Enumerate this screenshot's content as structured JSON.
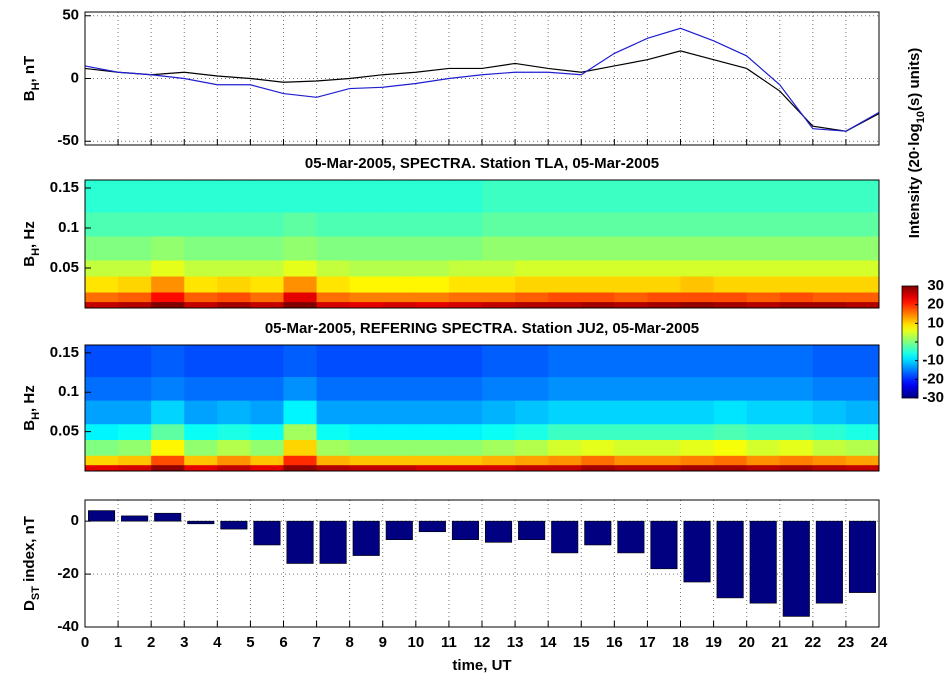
{
  "chart_data": [
    {
      "type": "line",
      "ylabel": {
        "text": "B",
        "sub": "H",
        "rest": ", nT"
      },
      "xlim": [
        0,
        24
      ],
      "ylim": [
        -53,
        53
      ],
      "yticks": [
        -50,
        0,
        50
      ],
      "grid": true,
      "x": [
        0,
        1,
        2,
        3,
        4,
        5,
        6,
        7,
        8,
        9,
        10,
        11,
        12,
        13,
        14,
        15,
        16,
        17,
        18,
        19,
        20,
        21,
        22,
        23,
        24
      ],
      "series": [
        {
          "color": "#000000",
          "values": [
            8,
            5,
            3,
            5,
            2,
            0,
            -3,
            -2,
            0,
            3,
            5,
            8,
            8,
            12,
            8,
            5,
            10,
            15,
            22,
            15,
            8,
            -10,
            -38,
            -42,
            -28
          ]
        },
        {
          "color": "#1f1fd0",
          "values": [
            10,
            5,
            3,
            0,
            -5,
            -5,
            -12,
            -15,
            -8,
            -7,
            -4,
            0,
            3,
            5,
            5,
            3,
            20,
            32,
            40,
            30,
            18,
            -5,
            -40,
            -42,
            -27
          ]
        }
      ]
    },
    {
      "type": "heatmap",
      "title": "05-Mar-2005, SPECTRA. Station TLA, 05-Mar-2005",
      "ylabel": {
        "text": "B",
        "sub": "H",
        "rest": ", Hz"
      },
      "ylim": [
        0,
        0.16
      ],
      "yticks": [
        0.05,
        0.1,
        0.15
      ],
      "xbins": [
        0,
        1,
        2,
        3,
        4,
        5,
        6,
        7,
        8,
        9,
        10,
        11,
        12,
        13,
        14,
        15,
        16,
        17,
        18,
        19,
        20,
        21,
        22,
        23,
        24
      ],
      "ybins": [
        0,
        0.008,
        0.02,
        0.04,
        0.06,
        0.09,
        0.12,
        0.16
      ],
      "values": [
        [
          26,
          27,
          30,
          26,
          28,
          26,
          30,
          25,
          24,
          25,
          24,
          25,
          26,
          27,
          27,
          28,
          27,
          28,
          29,
          28,
          27,
          28,
          28,
          27
        ],
        [
          16,
          17,
          22,
          17,
          18,
          16,
          24,
          16,
          15,
          15,
          15,
          16,
          16,
          17,
          18,
          18,
          17,
          18,
          18,
          18,
          17,
          18,
          17,
          17
        ],
        [
          9,
          10,
          14,
          9,
          10,
          9,
          14,
          9,
          8,
          8,
          8,
          9,
          9,
          10,
          10,
          10,
          10,
          10,
          11,
          10,
          10,
          10,
          10,
          10
        ],
        [
          4,
          4,
          6,
          4,
          4,
          4,
          6,
          4,
          3,
          3,
          3,
          4,
          4,
          5,
          5,
          5,
          5,
          5,
          5,
          5,
          5,
          5,
          5,
          5
        ],
        [
          0,
          0,
          1,
          0,
          0,
          0,
          1,
          0,
          0,
          0,
          0,
          0,
          1,
          1,
          1,
          1,
          1,
          1,
          1,
          1,
          1,
          1,
          1,
          1
        ],
        [
          -3,
          -3,
          -3,
          -3,
          -3,
          -3,
          -2,
          -3,
          -3,
          -3,
          -3,
          -3,
          -2,
          -2,
          -2,
          -2,
          -2,
          -2,
          -2,
          -2,
          -2,
          -2,
          -2,
          -2
        ],
        [
          -5,
          -5,
          -5,
          -5,
          -5,
          -5,
          -5,
          -5,
          -5,
          -5,
          -5,
          -5,
          -4,
          -4,
          -4,
          -4,
          -4,
          -4,
          -4,
          -4,
          -4,
          -4,
          -4,
          -4
        ]
      ],
      "colorbar": {
        "clim": [
          -30,
          30
        ],
        "ticks": [
          30,
          20,
          10,
          0,
          -10,
          -20,
          -30
        ],
        "label": {
          "text": "Intensity (20·log",
          "sub": "10",
          "rest": "(s) units)"
        }
      }
    },
    {
      "type": "heatmap",
      "title": "05-Mar-2005, REFERING SPECTRA. Station JU2, 05-Mar-2005",
      "ylabel": {
        "text": "B",
        "sub": "H",
        "rest": ", Hz"
      },
      "ylim": [
        0,
        0.16
      ],
      "yticks": [
        0.05,
        0.1,
        0.15
      ],
      "xbins": [
        0,
        1,
        2,
        3,
        4,
        5,
        6,
        7,
        8,
        9,
        10,
        11,
        12,
        13,
        14,
        15,
        16,
        17,
        18,
        19,
        20,
        21,
        22,
        23,
        24
      ],
      "ybins": [
        0,
        0.008,
        0.02,
        0.04,
        0.06,
        0.09,
        0.12,
        0.16
      ],
      "values": [
        [
          24,
          25,
          29,
          24,
          26,
          24,
          29,
          27,
          26,
          26,
          25,
          25,
          25,
          26,
          26,
          28,
          27,
          27,
          28,
          28,
          27,
          28,
          27,
          26
        ],
        [
          10,
          11,
          18,
          11,
          14,
          11,
          20,
          12,
          11,
          11,
          11,
          11,
          12,
          13,
          14,
          16,
          14,
          14,
          15,
          16,
          14,
          15,
          14,
          13
        ],
        [
          0,
          1,
          8,
          1,
          3,
          1,
          10,
          2,
          1,
          1,
          1,
          1,
          2,
          3,
          5,
          6,
          5,
          5,
          6,
          7,
          5,
          6,
          4,
          3
        ],
        [
          -8,
          -7,
          -2,
          -7,
          -6,
          -7,
          2,
          -7,
          -8,
          -8,
          -8,
          -8,
          -7,
          -6,
          -4,
          -4,
          -4,
          -4,
          -4,
          -3,
          -4,
          -4,
          -5,
          -6
        ],
        [
          -13,
          -13,
          -10,
          -13,
          -12,
          -13,
          -8,
          -13,
          -13,
          -13,
          -13,
          -13,
          -12,
          -11,
          -10,
          -10,
          -10,
          -10,
          -10,
          -9,
          -10,
          -10,
          -11,
          -12
        ],
        [
          -16,
          -16,
          -15,
          -16,
          -16,
          -16,
          -14,
          -16,
          -16,
          -16,
          -16,
          -16,
          -15,
          -15,
          -14,
          -14,
          -14,
          -14,
          -14,
          -14,
          -14,
          -14,
          -15,
          -15
        ],
        [
          -18,
          -18,
          -17,
          -18,
          -18,
          -18,
          -17,
          -18,
          -18,
          -18,
          -18,
          -18,
          -17,
          -17,
          -16,
          -16,
          -16,
          -16,
          -16,
          -16,
          -16,
          -16,
          -17,
          -17
        ]
      ]
    },
    {
      "type": "bar",
      "ylabel": {
        "text": "D",
        "sub": "ST",
        "rest": " index, nT"
      },
      "xlabel": "time, UT",
      "xlim": [
        0,
        24
      ],
      "xticks": [
        0,
        1,
        2,
        3,
        4,
        5,
        6,
        7,
        8,
        9,
        10,
        11,
        12,
        13,
        14,
        15,
        16,
        17,
        18,
        19,
        20,
        21,
        22,
        23,
        24
      ],
      "ylim": [
        -40,
        8
      ],
      "yticks": [
        -40,
        -20,
        0
      ],
      "grid": true,
      "color": "#000080",
      "x": [
        0.5,
        1.5,
        2.5,
        3.5,
        4.5,
        5.5,
        6.5,
        7.5,
        8.5,
        9.5,
        10.5,
        11.5,
        12.5,
        13.5,
        14.5,
        15.5,
        16.5,
        17.5,
        18.5,
        19.5,
        20.5,
        21.5,
        22.5,
        23.5
      ],
      "values": [
        4,
        2,
        3,
        -1,
        -3,
        -9,
        -16,
        -16,
        -13,
        -7,
        -4,
        -7,
        -8,
        -7,
        -12,
        -9,
        -12,
        -18,
        -23,
        -29,
        -31,
        -36,
        -31,
        -27
      ]
    }
  ]
}
